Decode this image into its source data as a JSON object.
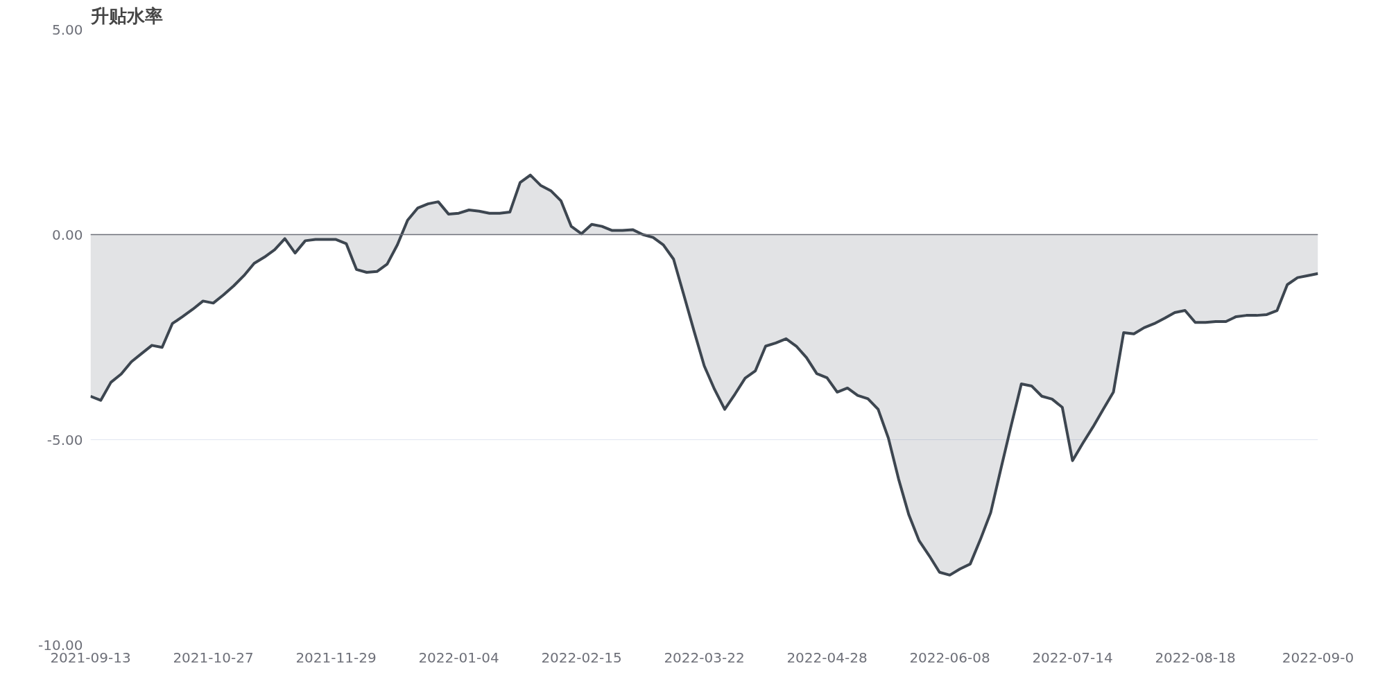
{
  "chart_data": {
    "type": "area",
    "title": "升贴水率",
    "categories": [
      "2021-09-13",
      null,
      null,
      null,
      null,
      null,
      null,
      null,
      null,
      null,
      null,
      null,
      "2021-10-27",
      null,
      null,
      null,
      null,
      null,
      null,
      null,
      null,
      null,
      null,
      null,
      "2021-11-29",
      null,
      null,
      null,
      null,
      null,
      null,
      null,
      null,
      null,
      null,
      null,
      "2022-01-04",
      null,
      null,
      null,
      null,
      null,
      null,
      null,
      null,
      null,
      null,
      null,
      "2022-02-15",
      null,
      null,
      null,
      null,
      null,
      null,
      null,
      null,
      null,
      null,
      null,
      "2022-03-22",
      null,
      null,
      null,
      null,
      null,
      null,
      null,
      null,
      null,
      null,
      null,
      "2022-04-28",
      null,
      null,
      null,
      null,
      null,
      null,
      null,
      null,
      null,
      null,
      null,
      "2022-06-08",
      null,
      null,
      null,
      null,
      null,
      null,
      null,
      null,
      null,
      null,
      null,
      "2022-07-14",
      null,
      null,
      null,
      null,
      null,
      null,
      null,
      null,
      null,
      null,
      null,
      "2022-08-18",
      null,
      null,
      null,
      null,
      null,
      null,
      null,
      null,
      null,
      null,
      null,
      "2022-09-0"
    ],
    "series": [
      {
        "color": "#3d4650",
        "values": [
          -3.94,
          -4.04,
          -3.6,
          -3.4,
          -3.1,
          -2.9,
          -2.7,
          -2.75,
          -2.17,
          -2.0,
          -1.82,
          -1.62,
          -1.67,
          -1.47,
          -1.25,
          -1.0,
          -0.7,
          -0.55,
          -0.37,
          -0.1,
          -0.45,
          -0.15,
          -0.12,
          -0.12,
          -0.12,
          -0.22,
          -0.85,
          -0.92,
          -0.9,
          -0.72,
          -0.25,
          0.35,
          0.65,
          0.75,
          0.8,
          0.5,
          0.52,
          0.6,
          0.57,
          0.52,
          0.52,
          0.55,
          1.27,
          1.45,
          1.2,
          1.07,
          0.82,
          0.2,
          0.02,
          0.25,
          0.2,
          0.1,
          0.1,
          0.12,
          0.0,
          -0.07,
          -0.25,
          -0.6,
          -1.47,
          -2.35,
          -3.2,
          -3.77,
          -4.26,
          -3.89,
          -3.5,
          -3.32,
          -2.72,
          -2.64,
          -2.54,
          -2.72,
          -3.0,
          -3.39,
          -3.49,
          -3.84,
          -3.74,
          -3.92,
          -4.0,
          -4.26,
          -4.96,
          -5.96,
          -6.83,
          -7.46,
          -7.83,
          -8.23,
          -8.3,
          -8.15,
          -8.03,
          -7.43,
          -6.78,
          -5.71,
          -4.66,
          -3.64,
          -3.69,
          -3.94,
          -4.01,
          -4.21,
          -5.51,
          -5.09,
          -4.69,
          -4.26,
          -3.84,
          -2.39,
          -2.42,
          -2.27,
          -2.17,
          -2.04,
          -1.9,
          -1.85,
          -2.14,
          -2.14,
          -2.12,
          -2.12,
          -2.0,
          -1.97,
          -1.97,
          -1.95,
          -1.85,
          -1.22,
          -1.05,
          -1.0,
          -0.95
        ]
      }
    ],
    "ylim": [
      -10,
      5
    ],
    "yticks": [
      {
        "value": 5,
        "label": "5.00"
      },
      {
        "value": 0,
        "label": "0.00"
      },
      {
        "value": -5,
        "label": "-5.00"
      },
      {
        "value": -10,
        "label": "-10.00"
      }
    ],
    "grid": "y"
  }
}
